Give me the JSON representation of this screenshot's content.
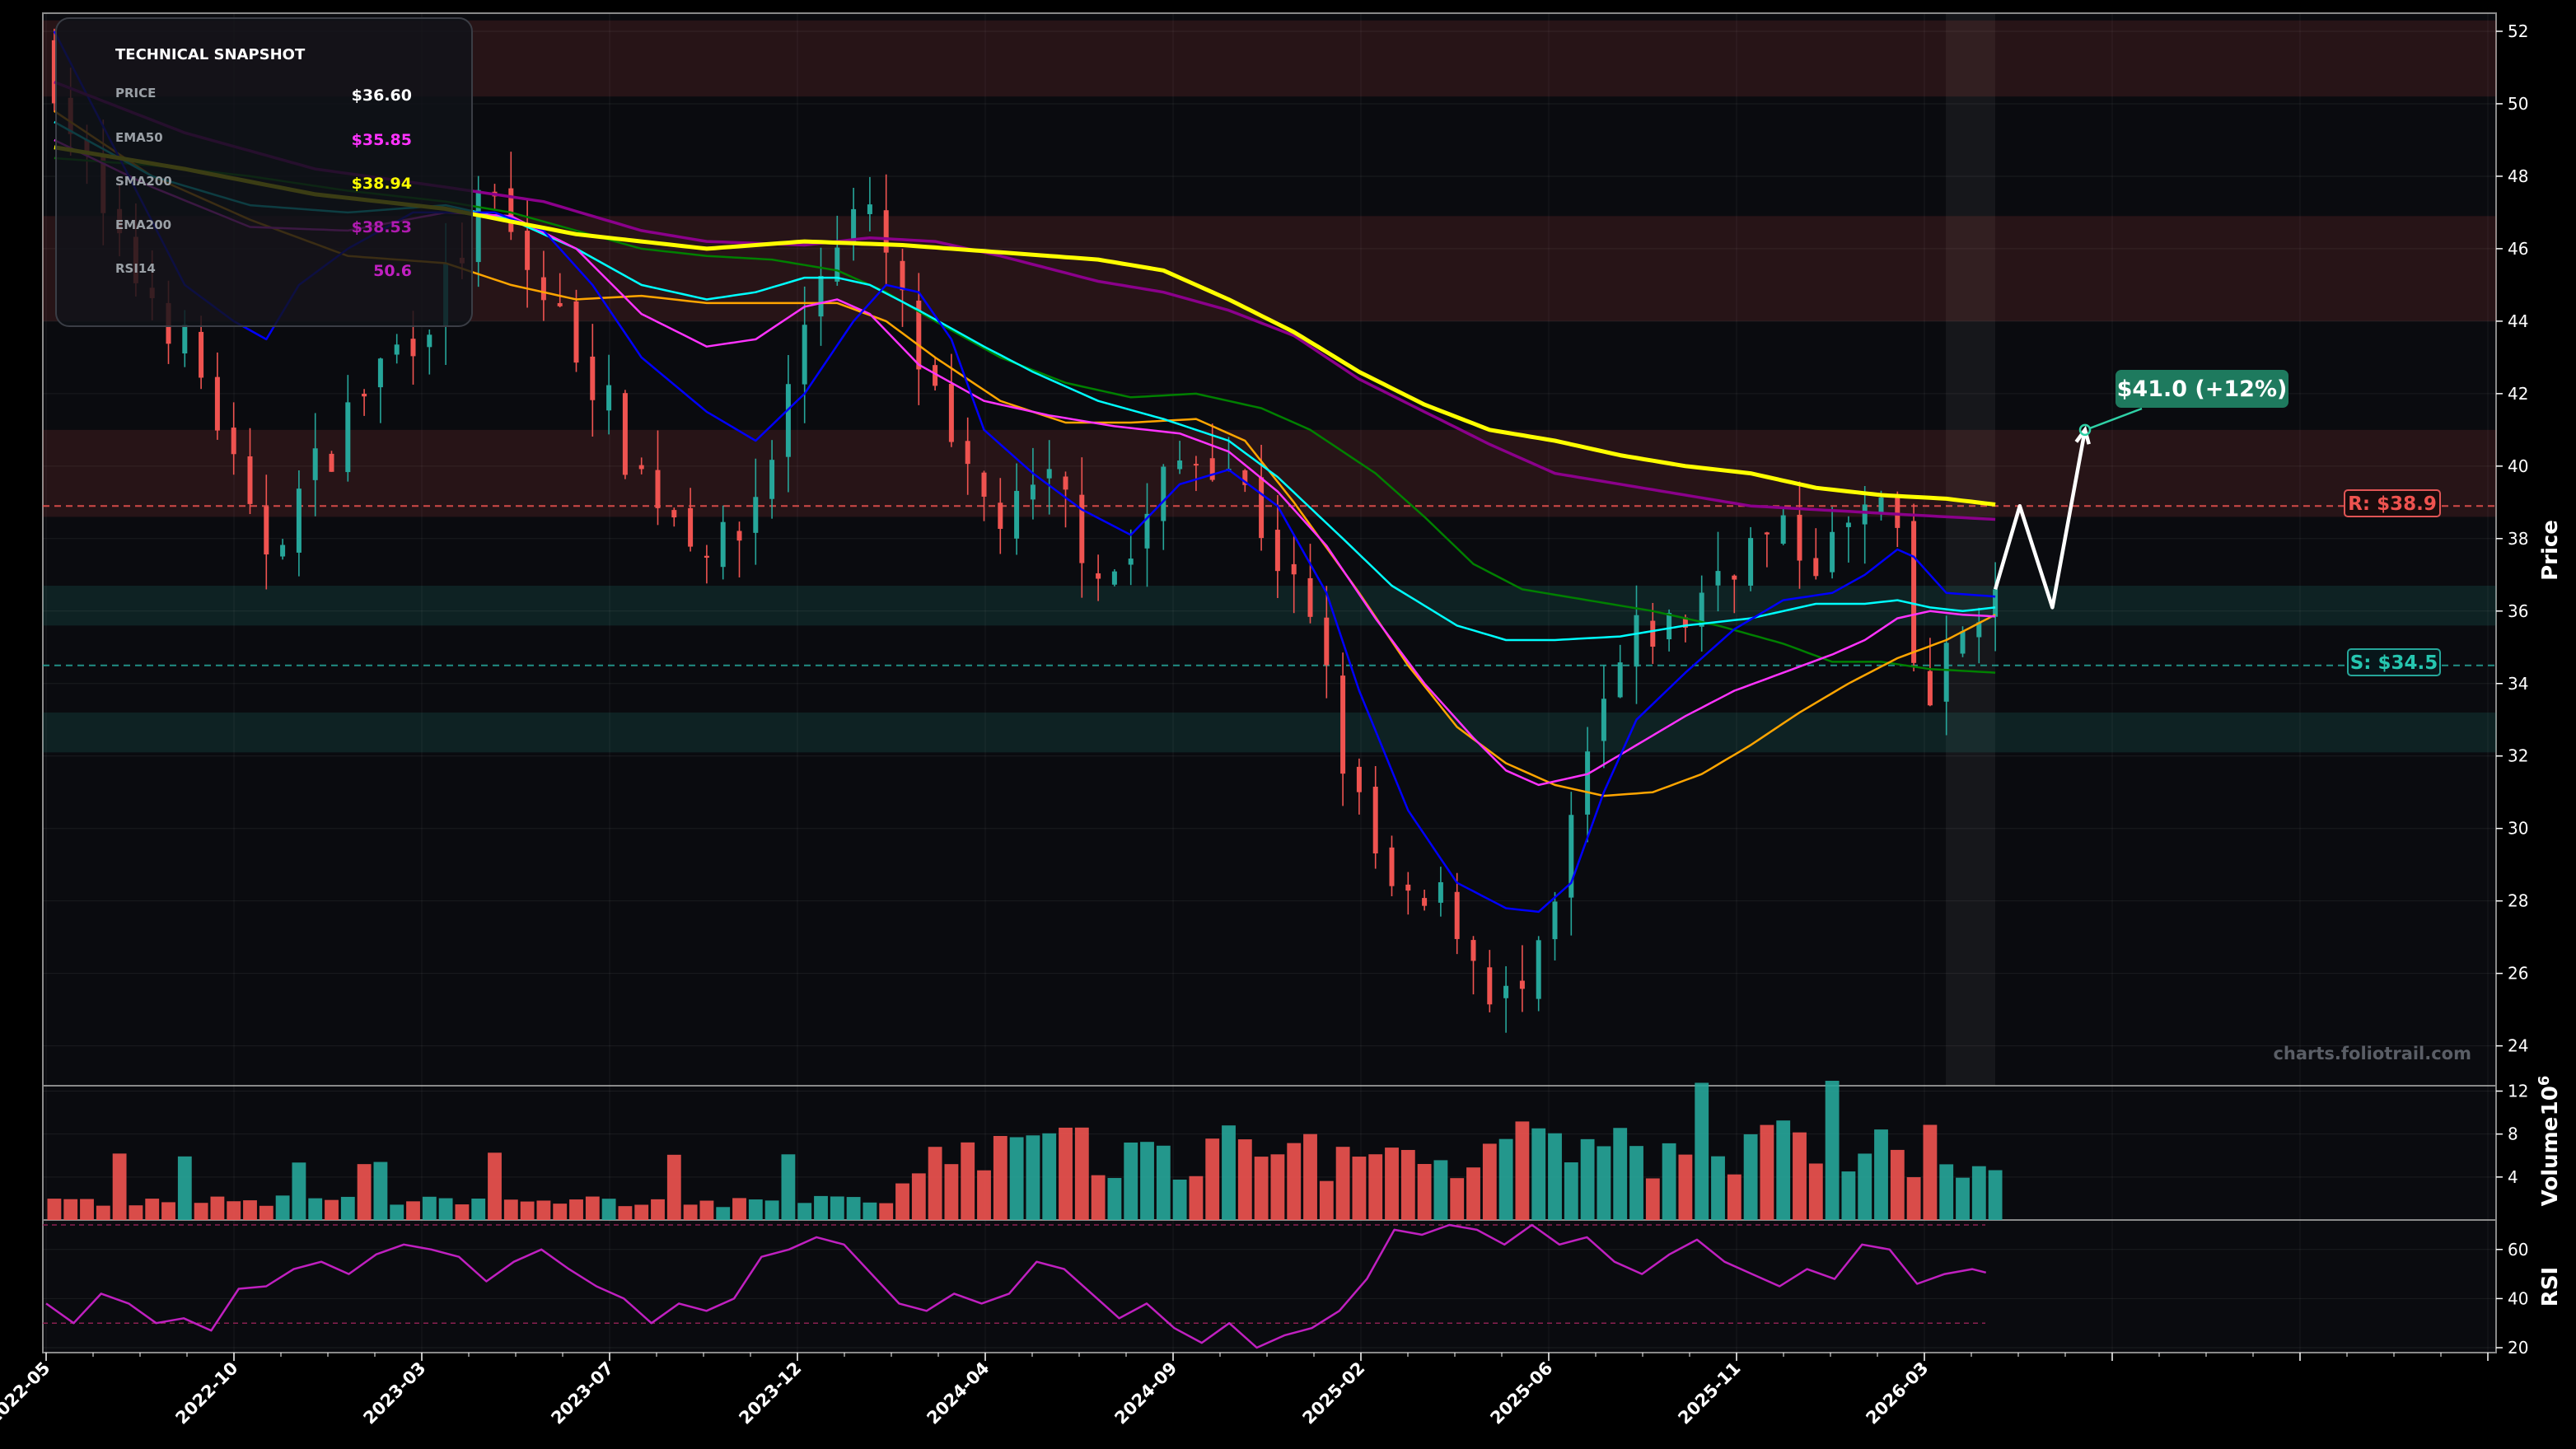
{
  "snapshot": {
    "title": "TECHNICAL SNAPSHOT",
    "rows": [
      {
        "key": "PRICE",
        "value": "$36.60",
        "color": "#ffffff"
      },
      {
        "key": "EMA50",
        "value": "$35.85",
        "color": "#ff33ff"
      },
      {
        "key": "SMA200",
        "value": "$38.94",
        "color": "#ffff00"
      },
      {
        "key": "EMA200",
        "value": "$38.53",
        "color": "#b01bb0"
      },
      {
        "key": "RSI14",
        "value": "50.6",
        "color": "#c020c0"
      }
    ]
  },
  "watermark": "charts.foliotrail.com",
  "target_label": "$41.0 (+12%)",
  "resistance_label": "R: $38.9",
  "support_label": "S: $34.5",
  "chart_data": {
    "type": "candlestick",
    "x_tick_labels": [
      "2022-05",
      "2022-10",
      "2023-03",
      "2023-07",
      "2023-12",
      "2024-04",
      "2024-09",
      "2025-02",
      "2025-06",
      "2025-11",
      "2026-03"
    ],
    "price_axis": {
      "label": "Price",
      "range": [
        22.9,
        52.5
      ],
      "ticks": [
        24,
        26,
        28,
        30,
        32,
        34,
        36,
        38,
        40,
        42,
        44,
        46,
        48,
        50,
        52
      ]
    },
    "volume_axis": {
      "label": "Volume",
      "unit": "10^6",
      "range": [
        0,
        12.5
      ],
      "ticks": [
        4,
        8,
        12
      ]
    },
    "rsi_axis": {
      "label": "RSI",
      "range": [
        18,
        72
      ],
      "ticks": [
        20,
        40,
        60
      ]
    },
    "colors": {
      "up": "#26a69a",
      "down": "#ef5350",
      "ema20": "#0000ff",
      "ema50": "#ff33ff",
      "sma50": "#00ffff",
      "sma100": "#ffa500",
      "sma150": "#008000",
      "sma200": "#ffff00",
      "ema200": "#8b008b",
      "rsi": "#c020c0"
    },
    "price_anchors": [
      [
        0,
        51.5
      ],
      [
        4,
        46
      ],
      [
        7,
        44.5
      ],
      [
        10,
        42
      ],
      [
        13,
        37.5
      ],
      [
        16,
        39.5
      ],
      [
        20,
        42.5
      ],
      [
        24,
        44.5
      ],
      [
        27,
        47.5
      ],
      [
        30,
        45
      ],
      [
        33,
        43
      ],
      [
        36,
        40
      ],
      [
        39,
        38.5
      ],
      [
        42,
        37.5
      ],
      [
        45,
        41
      ],
      [
        47,
        45
      ],
      [
        49,
        47
      ],
      [
        51,
        46.5
      ],
      [
        53,
        43.5
      ],
      [
        56,
        39.5
      ],
      [
        59,
        38.5
      ],
      [
        62,
        39.5
      ],
      [
        64,
        37.5
      ],
      [
        66,
        37
      ],
      [
        69,
        40
      ],
      [
        72,
        40.5
      ],
      [
        75,
        38
      ],
      [
        78,
        35
      ],
      [
        80,
        31
      ],
      [
        83,
        27.5
      ],
      [
        86,
        28
      ],
      [
        88,
        26
      ],
      [
        90,
        25
      ],
      [
        92,
        26.5
      ],
      [
        94,
        31
      ],
      [
        96,
        34
      ],
      [
        98,
        35.5
      ],
      [
        100,
        35.5
      ],
      [
        103,
        37.5
      ],
      [
        106,
        38
      ],
      [
        109,
        37.5
      ],
      [
        111,
        38.5
      ],
      [
        113,
        39
      ],
      [
        114,
        36
      ],
      [
        115,
        33
      ],
      [
        117,
        35
      ],
      [
        118,
        36
      ],
      [
        119,
        36.6
      ]
    ],
    "current_price": 36.6,
    "projection": [
      [
        119,
        36.6
      ],
      [
        120.5,
        38.9
      ],
      [
        122.5,
        36.1
      ],
      [
        124.5,
        41.0
      ]
    ],
    "target_price": 41.0,
    "resistance": 38.9,
    "support": 34.5,
    "resistance_zones": [
      [
        50.2,
        52.3
      ],
      [
        44.0,
        46.9
      ],
      [
        38.6,
        41.0
      ]
    ],
    "support_zones": [
      [
        35.6,
        36.7
      ],
      [
        32.1,
        33.2
      ]
    ],
    "ma_anchors": {
      "ema20": [
        [
          0,
          52
        ],
        [
          4,
          48.5
        ],
        [
          8,
          45
        ],
        [
          11,
          44
        ],
        [
          13,
          43.5
        ],
        [
          15,
          45
        ],
        [
          18,
          46
        ],
        [
          22,
          47
        ],
        [
          27,
          47
        ],
        [
          30,
          46.5
        ],
        [
          33,
          45
        ],
        [
          36,
          43
        ],
        [
          40,
          41.5
        ],
        [
          43,
          40.7
        ],
        [
          46,
          42
        ],
        [
          49,
          44
        ],
        [
          51,
          45
        ],
        [
          53,
          44.8
        ],
        [
          55,
          43.5
        ],
        [
          57,
          41
        ],
        [
          60,
          39.8
        ],
        [
          63,
          38.8
        ],
        [
          66,
          38.1
        ],
        [
          69,
          39.5
        ],
        [
          72,
          39.9
        ],
        [
          75,
          38.9
        ],
        [
          78,
          36.5
        ],
        [
          80,
          33.8
        ],
        [
          83,
          30.5
        ],
        [
          86,
          28.5
        ],
        [
          89,
          27.8
        ],
        [
          91,
          27.7
        ],
        [
          93,
          28.5
        ],
        [
          95,
          31
        ],
        [
          97,
          33
        ],
        [
          100,
          34.3
        ],
        [
          103,
          35.5
        ],
        [
          106,
          36.3
        ],
        [
          109,
          36.5
        ],
        [
          111,
          37
        ],
        [
          113,
          37.7
        ],
        [
          114,
          37.5
        ],
        [
          116,
          36.5
        ],
        [
          119,
          36.4
        ]
      ],
      "ema50": [
        [
          0,
          49
        ],
        [
          6,
          47.7
        ],
        [
          12,
          46.6
        ],
        [
          18,
          46.5
        ],
        [
          24,
          47
        ],
        [
          28,
          46.9
        ],
        [
          32,
          46
        ],
        [
          36,
          44.2
        ],
        [
          40,
          43.3
        ],
        [
          43,
          43.5
        ],
        [
          46,
          44.4
        ],
        [
          48,
          44.6
        ],
        [
          50,
          44.2
        ],
        [
          53,
          42.8
        ],
        [
          57,
          41.8
        ],
        [
          61,
          41.4
        ],
        [
          65,
          41.1
        ],
        [
          69,
          40.9
        ],
        [
          72,
          40.4
        ],
        [
          75,
          39.3
        ],
        [
          78,
          37.8
        ],
        [
          81,
          35.8
        ],
        [
          84,
          34
        ],
        [
          87,
          32.5
        ],
        [
          89,
          31.6
        ],
        [
          91,
          31.2
        ],
        [
          94,
          31.5
        ],
        [
          97,
          32.3
        ],
        [
          100,
          33.1
        ],
        [
          103,
          33.8
        ],
        [
          106,
          34.3
        ],
        [
          109,
          34.8
        ],
        [
          111,
          35.2
        ],
        [
          113,
          35.8
        ],
        [
          115,
          36
        ],
        [
          117,
          35.9
        ],
        [
          119,
          35.85
        ]
      ],
      "sma50": [
        [
          0,
          49.5
        ],
        [
          6,
          48
        ],
        [
          12,
          47.2
        ],
        [
          18,
          47
        ],
        [
          24,
          47.2
        ],
        [
          28,
          46.8
        ],
        [
          32,
          46
        ],
        [
          36,
          45
        ],
        [
          40,
          44.6
        ],
        [
          43,
          44.8
        ],
        [
          46,
          45.2
        ],
        [
          48,
          45.2
        ],
        [
          50,
          45
        ],
        [
          53,
          44.3
        ],
        [
          57,
          43.3
        ],
        [
          60,
          42.6
        ],
        [
          64,
          41.8
        ],
        [
          68,
          41.3
        ],
        [
          72,
          40.7
        ],
        [
          75,
          39.7
        ],
        [
          79,
          38
        ],
        [
          82,
          36.7
        ],
        [
          86,
          35.6
        ],
        [
          89,
          35.2
        ],
        [
          92,
          35.2
        ],
        [
          96,
          35.3
        ],
        [
          100,
          35.6
        ],
        [
          104,
          35.8
        ],
        [
          108,
          36.2
        ],
        [
          111,
          36.2
        ],
        [
          113,
          36.3
        ],
        [
          115,
          36.1
        ],
        [
          117,
          36
        ],
        [
          119,
          36.1
        ]
      ],
      "sma100": [
        [
          0,
          49.8
        ],
        [
          6,
          48
        ],
        [
          12,
          46.8
        ],
        [
          18,
          45.8
        ],
        [
          24,
          45.6
        ],
        [
          28,
          45
        ],
        [
          32,
          44.6
        ],
        [
          36,
          44.7
        ],
        [
          40,
          44.5
        ],
        [
          44,
          44.5
        ],
        [
          48,
          44.5
        ],
        [
          51,
          44
        ],
        [
          54,
          43
        ],
        [
          58,
          41.8
        ],
        [
          62,
          41.2
        ],
        [
          66,
          41.2
        ],
        [
          70,
          41.3
        ],
        [
          73,
          40.7
        ],
        [
          76,
          39
        ],
        [
          80,
          36.5
        ],
        [
          83,
          34.5
        ],
        [
          86,
          32.8
        ],
        [
          89,
          31.8
        ],
        [
          92,
          31.2
        ],
        [
          95,
          30.9
        ],
        [
          98,
          31
        ],
        [
          101,
          31.5
        ],
        [
          104,
          32.3
        ],
        [
          107,
          33.2
        ],
        [
          110,
          34
        ],
        [
          113,
          34.7
        ],
        [
          116,
          35.2
        ],
        [
          119,
          35.9
        ]
      ],
      "sma150": [
        [
          0,
          48.5
        ],
        [
          6,
          48.3
        ],
        [
          12,
          48
        ],
        [
          18,
          47.6
        ],
        [
          24,
          47.3
        ],
        [
          28,
          47
        ],
        [
          32,
          46.5
        ],
        [
          36,
          46
        ],
        [
          40,
          45.8
        ],
        [
          44,
          45.7
        ],
        [
          48,
          45.4
        ],
        [
          51,
          44.8
        ],
        [
          54,
          44
        ],
        [
          58,
          43
        ],
        [
          62,
          42.3
        ],
        [
          66,
          41.9
        ],
        [
          70,
          42
        ],
        [
          74,
          41.6
        ],
        [
          77,
          41
        ],
        [
          81,
          39.8
        ],
        [
          84,
          38.6
        ],
        [
          87,
          37.3
        ],
        [
          90,
          36.6
        ],
        [
          94,
          36.3
        ],
        [
          98,
          36
        ],
        [
          102,
          35.6
        ],
        [
          106,
          35.1
        ],
        [
          109,
          34.6
        ],
        [
          112,
          34.6
        ],
        [
          115,
          34.4
        ],
        [
          119,
          34.3
        ]
      ],
      "sma200": [
        [
          0,
          48.8
        ],
        [
          8,
          48.2
        ],
        [
          16,
          47.5
        ],
        [
          24,
          47.1
        ],
        [
          32,
          46.4
        ],
        [
          40,
          46
        ],
        [
          46,
          46.2
        ],
        [
          52,
          46.1
        ],
        [
          58,
          45.9
        ],
        [
          64,
          45.7
        ],
        [
          68,
          45.4
        ],
        [
          72,
          44.6
        ],
        [
          76,
          43.7
        ],
        [
          80,
          42.6
        ],
        [
          84,
          41.7
        ],
        [
          88,
          41
        ],
        [
          92,
          40.7
        ],
        [
          96,
          40.3
        ],
        [
          100,
          40
        ],
        [
          104,
          39.8
        ],
        [
          108,
          39.4
        ],
        [
          112,
          39.2
        ],
        [
          116,
          39.1
        ],
        [
          119,
          38.94
        ]
      ],
      "ema200": [
        [
          0,
          50.6
        ],
        [
          8,
          49.2
        ],
        [
          16,
          48.2
        ],
        [
          24,
          47.7
        ],
        [
          30,
          47.3
        ],
        [
          36,
          46.5
        ],
        [
          40,
          46.2
        ],
        [
          46,
          46.1
        ],
        [
          50,
          46.3
        ],
        [
          54,
          46.2
        ],
        [
          58,
          45.8
        ],
        [
          64,
          45.1
        ],
        [
          68,
          44.8
        ],
        [
          72,
          44.3
        ],
        [
          76,
          43.6
        ],
        [
          80,
          42.4
        ],
        [
          84,
          41.5
        ],
        [
          88,
          40.6
        ],
        [
          92,
          39.8
        ],
        [
          96,
          39.5
        ],
        [
          100,
          39.2
        ],
        [
          104,
          38.9
        ],
        [
          108,
          38.8
        ],
        [
          112,
          38.7
        ],
        [
          116,
          38.6
        ],
        [
          119,
          38.53
        ]
      ]
    },
    "rsi_anchors": [
      [
        0,
        38
      ],
      [
        2,
        30
      ],
      [
        4,
        42
      ],
      [
        6,
        38
      ],
      [
        8,
        30
      ],
      [
        10,
        32
      ],
      [
        12,
        27
      ],
      [
        14,
        44
      ],
      [
        16,
        45
      ],
      [
        18,
        52
      ],
      [
        20,
        55
      ],
      [
        22,
        50
      ],
      [
        24,
        58
      ],
      [
        26,
        62
      ],
      [
        28,
        60
      ],
      [
        30,
        57
      ],
      [
        32,
        47
      ],
      [
        34,
        55
      ],
      [
        36,
        60
      ],
      [
        38,
        52
      ],
      [
        40,
        45
      ],
      [
        42,
        40
      ],
      [
        44,
        30
      ],
      [
        46,
        38
      ],
      [
        48,
        35
      ],
      [
        50,
        40
      ],
      [
        52,
        57
      ],
      [
        54,
        60
      ],
      [
        56,
        65
      ],
      [
        58,
        62
      ],
      [
        60,
        50
      ],
      [
        62,
        38
      ],
      [
        64,
        35
      ],
      [
        66,
        42
      ],
      [
        68,
        38
      ],
      [
        70,
        42
      ],
      [
        72,
        55
      ],
      [
        74,
        52
      ],
      [
        76,
        42
      ],
      [
        78,
        32
      ],
      [
        80,
        38
      ],
      [
        82,
        28
      ],
      [
        84,
        22
      ],
      [
        86,
        30
      ],
      [
        88,
        20
      ],
      [
        90,
        25
      ],
      [
        92,
        28
      ],
      [
        94,
        35
      ],
      [
        96,
        48
      ],
      [
        98,
        68
      ],
      [
        100,
        66
      ],
      [
        102,
        70
      ],
      [
        104,
        68
      ],
      [
        106,
        62
      ],
      [
        108,
        70
      ],
      [
        110,
        62
      ],
      [
        112,
        65
      ],
      [
        114,
        55
      ],
      [
        116,
        50
      ],
      [
        118,
        58
      ],
      [
        120,
        64
      ],
      [
        122,
        55
      ],
      [
        124,
        50
      ],
      [
        126,
        45
      ],
      [
        128,
        52
      ],
      [
        130,
        48
      ],
      [
        132,
        62
      ],
      [
        134,
        60
      ],
      [
        136,
        46
      ],
      [
        138,
        50
      ],
      [
        140,
        52
      ],
      [
        141,
        50.6
      ]
    ],
    "rsi_guides": [
      30,
      70
    ]
  }
}
